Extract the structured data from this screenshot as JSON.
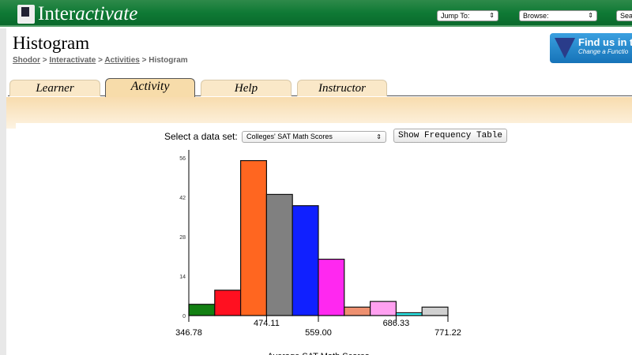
{
  "header": {
    "logo_text_1": "Inter",
    "logo_text_2": "activate",
    "jump_to": "Jump To:",
    "browse": "Browse:",
    "search": "Sea"
  },
  "page": {
    "title": "Histogram",
    "breadcrumbs": [
      "Shodor",
      "Interactivate",
      "Activities",
      "Histogram"
    ],
    "breadcrumb_current": "Histogram"
  },
  "ad": {
    "line1": "Find us in t",
    "line2": "Change a Functio"
  },
  "tabs": [
    {
      "label": "Learner"
    },
    {
      "label": "Activity",
      "active": true
    },
    {
      "label": "Help"
    },
    {
      "label": "Instructor"
    }
  ],
  "controls": {
    "dataset_label": "Select a data set:",
    "dataset_value": "Colleges' SAT Math Scores",
    "freq_button": "Show Frequency Table"
  },
  "chart_data": {
    "type": "bar",
    "bin_edges": [
      346.78,
      389.22,
      431.67,
      474.11,
      516.56,
      559.0,
      601.44,
      643.89,
      686.33,
      728.78,
      771.22
    ],
    "values": [
      4,
      9,
      55,
      43,
      39,
      20,
      3,
      5,
      1,
      3
    ],
    "colors": [
      "#138013",
      "#ff1020",
      "#ff6620",
      "#808080",
      "#1020ff",
      "#ff28f0",
      "#ee9070",
      "#ffa0f0",
      "#30f0f0",
      "#d0d0d0"
    ],
    "yticks": [
      "0",
      "14",
      "28",
      "42",
      "56"
    ],
    "xticks": [
      "346.78",
      "474.11",
      "559.00",
      "686.33",
      "771.22"
    ],
    "ylim": [
      0,
      56
    ],
    "xlim": [
      346.78,
      771.22
    ],
    "xlabel": "Average SAT Math Scores"
  }
}
